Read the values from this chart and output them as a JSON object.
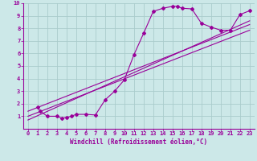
{
  "xlabel": "Windchill (Refroidissement éolien,°C)",
  "ylabel": "",
  "xlim": [
    -0.5,
    23.5
  ],
  "ylim": [
    0,
    10
  ],
  "bg_color": "#cce8e8",
  "grid_color": "#aacccc",
  "line_color": "#990099",
  "main_x": [
    1,
    1.3,
    2,
    3,
    3.5,
    4,
    4.5,
    5,
    6,
    7,
    8,
    9,
    10,
    11,
    12,
    13,
    14,
    15,
    15.5,
    16,
    17,
    18,
    19,
    20,
    21,
    22,
    23
  ],
  "main_y": [
    1.7,
    1.4,
    1.0,
    1.0,
    0.85,
    0.9,
    1.0,
    1.15,
    1.15,
    1.1,
    2.3,
    3.0,
    3.9,
    5.9,
    7.6,
    9.35,
    9.6,
    9.75,
    9.75,
    9.6,
    9.55,
    8.4,
    8.1,
    7.85,
    7.85,
    9.1,
    9.4
  ],
  "line1_x": [
    0,
    23
  ],
  "line1_y": [
    0.7,
    8.6
  ],
  "line2_x": [
    0,
    23
  ],
  "line2_y": [
    1.4,
    8.3
  ],
  "line3_x": [
    0,
    23
  ],
  "line3_y": [
    1.0,
    7.85
  ],
  "xticks": [
    0,
    1,
    2,
    3,
    4,
    5,
    6,
    7,
    8,
    9,
    10,
    11,
    12,
    13,
    14,
    15,
    16,
    17,
    18,
    19,
    20,
    21,
    22,
    23
  ],
  "yticks": [
    1,
    2,
    3,
    4,
    5,
    6,
    7,
    8,
    9,
    10
  ],
  "tick_fontsize": 5.0,
  "xlabel_fontsize": 5.5
}
